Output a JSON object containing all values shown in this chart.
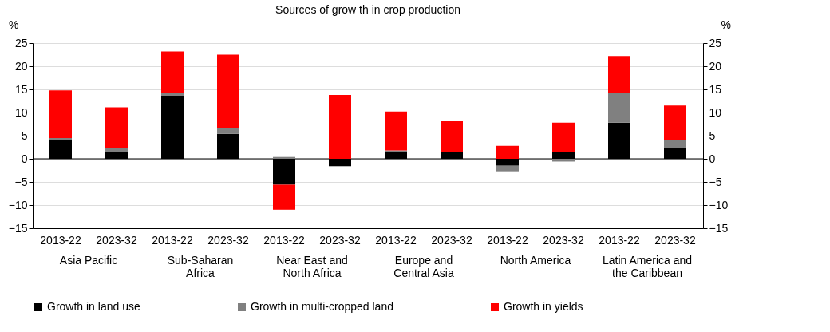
{
  "chart_data": {
    "type": "bar",
    "title": "Sources of grow th in crop production",
    "ylabel": "%",
    "y2label": "%",
    "categories": [
      "2013-22",
      "2023-32",
      "2013-22",
      "2023-32",
      "2013-22",
      "2023-32",
      "2013-22",
      "2023-32",
      "2013-22",
      "2023-32",
      "2013-22",
      "2023-32"
    ],
    "annotations": [
      "Asia Pacific",
      "Sub-Saharan\nAfrica",
      "Near East and\nNorth Africa",
      "Europe and\nCentral Asia",
      "North America",
      "Latin America and\nthe Caribbean"
    ],
    "stacked": true,
    "series": [
      {
        "name": "Growth in land use",
        "color": "#000000",
        "values": [
          4.1,
          1.4,
          13.7,
          5.4,
          -5.6,
          -1.6,
          1.4,
          1.4,
          -1.5,
          1.4,
          7.8,
          2.4
        ]
      },
      {
        "name": "Growth in multi-cropped land",
        "color": "#808080",
        "values": [
          0.4,
          1.0,
          0.5,
          1.3,
          0.4,
          0,
          0.4,
          0,
          -1.2,
          -0.6,
          6.4,
          1.7
        ]
      },
      {
        "name": "Growth in yields",
        "color": "#ff0000",
        "values": [
          10.3,
          8.7,
          9.0,
          15.8,
          -5.4,
          13.8,
          8.4,
          6.7,
          2.8,
          6.4,
          8.0,
          7.4
        ]
      }
    ],
    "ylim": [
      -15,
      25
    ],
    "yticks": [
      -15,
      -10,
      -5,
      0,
      5,
      10,
      15,
      20,
      25
    ],
    "y2lim": [
      -15,
      25
    ],
    "y2ticks": [
      -15,
      -10,
      -5,
      0,
      5,
      10,
      15,
      20,
      25
    ],
    "grid": "y",
    "legend": "bottom"
  }
}
